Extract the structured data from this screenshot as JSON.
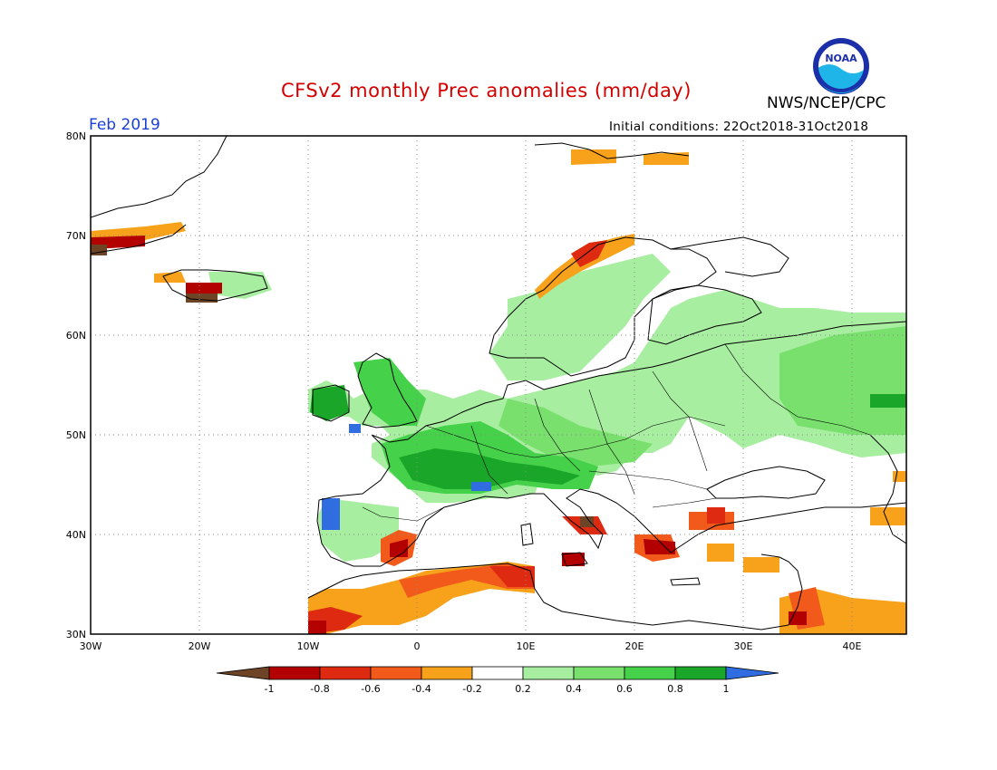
{
  "header": {
    "title": "CFSv2 monthly Prec anomalies (mm/day)",
    "month": "Feb 2019",
    "initial_conditions": "Initial conditions: 22Oct2018-31Oct2018",
    "agency": "NWS/NCEP/CPC",
    "logo_text": "NOAA",
    "logo_icon": "noaa-logo-icon"
  },
  "colors": {
    "title": "#d40000",
    "month": "#1a3fd6",
    "very_dry": "#6e4426",
    "dry_1": "#b30000",
    "dry_08": "#dd2a10",
    "dry_06": "#f25a1c",
    "dry_04": "#f7a21a",
    "neutral": "#ffffff",
    "wet_02": "#a8eea0",
    "wet_04": "#79e06e",
    "wet_06": "#45d24a",
    "wet_08": "#1aa628",
    "very_wet": "#2f6de0"
  },
  "map": {
    "lat_labels": [
      "80N",
      "70N",
      "60N",
      "50N",
      "40N",
      "30N"
    ],
    "lon_labels": [
      "30W",
      "20W",
      "10W",
      "0",
      "10E",
      "20E",
      "30E",
      "40E"
    ],
    "lon_range": [
      -30,
      45
    ],
    "lat_range": [
      30,
      80
    ]
  },
  "colorbar": {
    "labels": [
      "-1",
      "-0.8",
      "-0.6",
      "-0.4",
      "-0.2",
      "0.2",
      "0.4",
      "0.6",
      "0.8",
      "1"
    ],
    "bins": [
      {
        "color": "#b30000"
      },
      {
        "color": "#dd2a10"
      },
      {
        "color": "#f25a1c"
      },
      {
        "color": "#f7a21a"
      },
      {
        "color": "#ffffff"
      },
      {
        "color": "#a8eea0"
      },
      {
        "color": "#79e06e"
      },
      {
        "color": "#45d24a"
      },
      {
        "color": "#1aa628"
      }
    ],
    "low_arrow_color": "#6e4426",
    "high_arrow_color": "#2f6de0"
  }
}
